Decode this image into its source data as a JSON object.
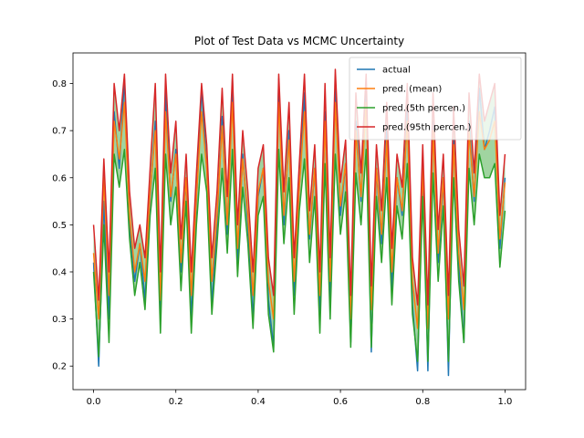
{
  "chart_data": {
    "type": "line",
    "title": "Plot of Test Data vs MCMC Uncertainty",
    "xlabel": "",
    "ylabel": "",
    "xlim": [
      -0.05,
      1.05
    ],
    "ylim": [
      0.15,
      0.865
    ],
    "xticks": [
      0.0,
      0.2,
      0.4,
      0.6,
      0.8,
      1.0
    ],
    "xtick_labels": [
      "0.0",
      "0.2",
      "0.4",
      "0.6",
      "0.8",
      "1.0"
    ],
    "yticks": [
      0.2,
      0.3,
      0.4,
      0.5,
      0.6,
      0.7,
      0.8
    ],
    "ytick_labels": [
      "0.2",
      "0.3",
      "0.4",
      "0.5",
      "0.6",
      "0.7",
      "0.8"
    ],
    "grid": false,
    "legend_position": "top-right",
    "shaded_band": {
      "between": [
        "pred.(5th percen.)",
        "pred.(95th percen.)"
      ],
      "color": "#2ca02c",
      "opacity": 0.45
    },
    "x": [
      0.0,
      0.0125,
      0.025,
      0.0375,
      0.05,
      0.0625,
      0.075,
      0.0875,
      0.1,
      0.1125,
      0.125,
      0.1375,
      0.15,
      0.1625,
      0.175,
      0.1875,
      0.2,
      0.2125,
      0.225,
      0.2375,
      0.25,
      0.2625,
      0.275,
      0.2875,
      0.3,
      0.3125,
      0.325,
      0.3375,
      0.35,
      0.3625,
      0.375,
      0.3875,
      0.4,
      0.4125,
      0.425,
      0.4375,
      0.45,
      0.4625,
      0.475,
      0.4875,
      0.5,
      0.5125,
      0.525,
      0.5375,
      0.55,
      0.5625,
      0.575,
      0.5875,
      0.6,
      0.6125,
      0.625,
      0.6375,
      0.65,
      0.6625,
      0.675,
      0.6875,
      0.7,
      0.7125,
      0.725,
      0.7375,
      0.75,
      0.7625,
      0.775,
      0.7875,
      0.8,
      0.8125,
      0.825,
      0.8375,
      0.85,
      0.8625,
      0.875,
      0.8875,
      0.9,
      0.9125,
      0.925,
      0.9375,
      0.95,
      0.9625,
      0.975,
      0.9875,
      1.0
    ],
    "series": [
      {
        "name": "actual",
        "color": "#1f77b4",
        "values": [
          0.42,
          0.2,
          0.55,
          0.3,
          0.74,
          0.62,
          0.81,
          0.5,
          0.38,
          0.46,
          0.34,
          0.56,
          0.72,
          0.3,
          0.78,
          0.55,
          0.66,
          0.4,
          0.6,
          0.3,
          0.55,
          0.79,
          0.62,
          0.33,
          0.5,
          0.73,
          0.48,
          0.81,
          0.42,
          0.65,
          0.5,
          0.3,
          0.56,
          0.62,
          0.34,
          0.24,
          0.81,
          0.5,
          0.7,
          0.35,
          0.58,
          0.78,
          0.47,
          0.62,
          0.3,
          0.74,
          0.33,
          0.8,
          0.52,
          0.63,
          0.25,
          0.72,
          0.55,
          0.8,
          0.23,
          0.62,
          0.46,
          0.7,
          0.36,
          0.6,
          0.52,
          0.74,
          0.33,
          0.19,
          0.62,
          0.19,
          0.72,
          0.42,
          0.6,
          0.18,
          0.68,
          0.42,
          0.25,
          0.72,
          0.55,
          0.79,
          0.66,
          0.7,
          0.75,
          0.45,
          0.6
        ]
      },
      {
        "name": "pred. (mean)",
        "color": "#ff7f0e",
        "values": [
          0.44,
          0.3,
          0.6,
          0.35,
          0.72,
          0.64,
          0.76,
          0.52,
          0.4,
          0.46,
          0.38,
          0.57,
          0.7,
          0.34,
          0.74,
          0.56,
          0.65,
          0.42,
          0.6,
          0.35,
          0.56,
          0.74,
          0.62,
          0.38,
          0.52,
          0.71,
          0.5,
          0.76,
          0.45,
          0.64,
          0.52,
          0.35,
          0.57,
          0.62,
          0.38,
          0.3,
          0.76,
          0.52,
          0.68,
          0.38,
          0.58,
          0.74,
          0.48,
          0.62,
          0.35,
          0.72,
          0.38,
          0.76,
          0.54,
          0.63,
          0.3,
          0.7,
          0.56,
          0.76,
          0.32,
          0.62,
          0.48,
          0.68,
          0.4,
          0.6,
          0.53,
          0.72,
          0.38,
          0.28,
          0.62,
          0.28,
          0.7,
          0.44,
          0.6,
          0.3,
          0.67,
          0.44,
          0.32,
          0.7,
          0.56,
          0.74,
          0.66,
          0.68,
          0.72,
          0.47,
          0.59
        ]
      },
      {
        "name": "pred.(5th percen.)",
        "color": "#2ca02c",
        "values": [
          0.4,
          0.22,
          0.5,
          0.25,
          0.65,
          0.58,
          0.66,
          0.47,
          0.35,
          0.42,
          0.32,
          0.52,
          0.62,
          0.27,
          0.65,
          0.5,
          0.58,
          0.36,
          0.55,
          0.27,
          0.5,
          0.65,
          0.57,
          0.31,
          0.46,
          0.62,
          0.44,
          0.66,
          0.39,
          0.58,
          0.46,
          0.28,
          0.52,
          0.56,
          0.31,
          0.23,
          0.66,
          0.46,
          0.6,
          0.31,
          0.53,
          0.64,
          0.42,
          0.56,
          0.27,
          0.63,
          0.3,
          0.65,
          0.48,
          0.57,
          0.24,
          0.61,
          0.5,
          0.66,
          0.24,
          0.56,
          0.42,
          0.6,
          0.33,
          0.54,
          0.47,
          0.63,
          0.31,
          0.21,
          0.56,
          0.21,
          0.61,
          0.38,
          0.54,
          0.21,
          0.6,
          0.38,
          0.25,
          0.62,
          0.5,
          0.65,
          0.6,
          0.6,
          0.63,
          0.41,
          0.53
        ]
      },
      {
        "name": "pred.(95th percen.)",
        "color": "#d62728",
        "values": [
          0.5,
          0.34,
          0.64,
          0.4,
          0.8,
          0.7,
          0.82,
          0.57,
          0.45,
          0.5,
          0.43,
          0.62,
          0.8,
          0.4,
          0.82,
          0.61,
          0.72,
          0.47,
          0.65,
          0.4,
          0.61,
          0.8,
          0.67,
          0.43,
          0.57,
          0.79,
          0.56,
          0.82,
          0.5,
          0.7,
          0.57,
          0.4,
          0.62,
          0.67,
          0.43,
          0.35,
          0.82,
          0.57,
          0.76,
          0.43,
          0.63,
          0.82,
          0.53,
          0.67,
          0.4,
          0.8,
          0.43,
          0.83,
          0.59,
          0.68,
          0.35,
          0.78,
          0.61,
          0.82,
          0.37,
          0.67,
          0.53,
          0.76,
          0.45,
          0.65,
          0.58,
          0.8,
          0.43,
          0.33,
          0.67,
          0.33,
          0.78,
          0.49,
          0.65,
          0.35,
          0.75,
          0.49,
          0.37,
          0.78,
          0.61,
          0.82,
          0.72,
          0.76,
          0.8,
          0.52,
          0.65
        ]
      }
    ]
  }
}
